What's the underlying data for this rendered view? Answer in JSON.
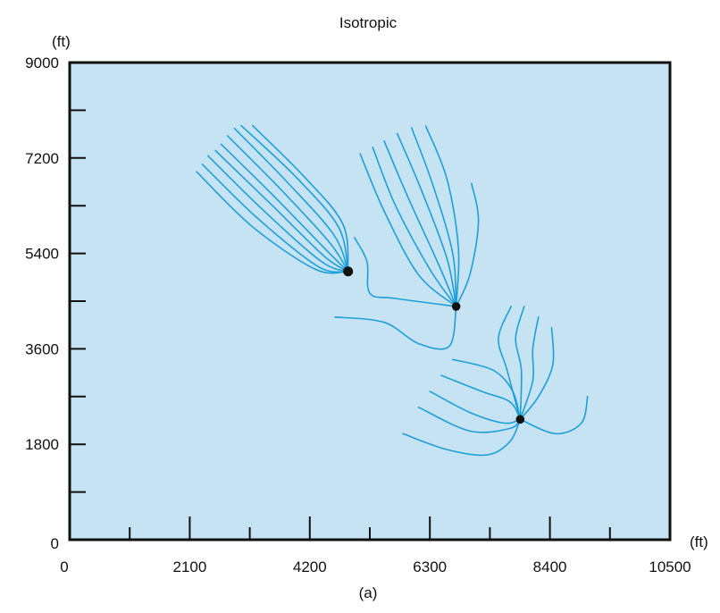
{
  "chart_data": {
    "type": "line",
    "title": "Isotropic",
    "caption": "(a)",
    "xlabel": "(ft)",
    "ylabel": "(ft)",
    "xlim": [
      0,
      10500
    ],
    "ylim": [
      0,
      9000
    ],
    "x_ticks": [
      0,
      2100,
      4200,
      6300,
      8400,
      10500
    ],
    "y_ticks": [
      0,
      1800,
      3600,
      5400,
      7200,
      9000
    ],
    "x_tick_labels": [
      "0",
      "2100",
      "4200",
      "6300",
      "8400",
      "10500"
    ],
    "y_tick_labels": [
      "0",
      "1800",
      "3600",
      "5400",
      "7200",
      "9000"
    ],
    "x_minor_ticks": [
      1050,
      3150,
      5250,
      7350,
      9450
    ],
    "y_minor_ticks": [
      900,
      2700,
      4500,
      6300,
      8100
    ],
    "grid": false,
    "colors": {
      "plot_background": "#c5e3f3",
      "streamline": "#1f9fd8",
      "well": "#111111",
      "axis": "#111111"
    },
    "wells": [
      {
        "x": 4870,
        "y": 5060
      },
      {
        "x": 6760,
        "y": 4400
      },
      {
        "x": 7880,
        "y": 2270
      }
    ],
    "streamlines": [
      {
        "points": [
          [
            2220,
            6940
          ],
          [
            3200,
            5900
          ],
          [
            4300,
            5100
          ],
          [
            4870,
            5060
          ]
        ]
      },
      {
        "points": [
          [
            2320,
            7080
          ],
          [
            3300,
            6050
          ],
          [
            4350,
            5150
          ],
          [
            4870,
            5060
          ]
        ]
      },
      {
        "points": [
          [
            2420,
            7240
          ],
          [
            3400,
            6200
          ],
          [
            4400,
            5250
          ],
          [
            4870,
            5060
          ]
        ]
      },
      {
        "points": [
          [
            2550,
            7340
          ],
          [
            3500,
            6350
          ],
          [
            4450,
            5350
          ],
          [
            4870,
            5060
          ]
        ]
      },
      {
        "points": [
          [
            2650,
            7460
          ],
          [
            3600,
            6450
          ],
          [
            4500,
            5450
          ],
          [
            4870,
            5060
          ]
        ]
      },
      {
        "points": [
          [
            2760,
            7620
          ],
          [
            3700,
            6600
          ],
          [
            4550,
            5600
          ],
          [
            4870,
            5060
          ]
        ]
      },
      {
        "points": [
          [
            2880,
            7760
          ],
          [
            3800,
            6750
          ],
          [
            4620,
            5750
          ],
          [
            4870,
            5060
          ]
        ]
      },
      {
        "points": [
          [
            3000,
            7810
          ],
          [
            3950,
            6850
          ],
          [
            4700,
            5900
          ],
          [
            4870,
            5060
          ]
        ]
      },
      {
        "points": [
          [
            3200,
            7810
          ],
          [
            4100,
            6850
          ],
          [
            4780,
            5950
          ],
          [
            4870,
            5060
          ]
        ]
      },
      {
        "points": [
          [
            4640,
            4200
          ],
          [
            5500,
            4100
          ],
          [
            6100,
            3700
          ],
          [
            6640,
            3650
          ],
          [
            6760,
            4400
          ]
        ]
      },
      {
        "points": [
          [
            4980,
            5700
          ],
          [
            5200,
            5250
          ],
          [
            5250,
            4650
          ],
          [
            5700,
            4550
          ],
          [
            6760,
            4400
          ]
        ]
      },
      {
        "points": [
          [
            5080,
            7280
          ],
          [
            5500,
            6200
          ],
          [
            6100,
            5000
          ],
          [
            6760,
            4400
          ]
        ]
      },
      {
        "points": [
          [
            5300,
            7400
          ],
          [
            5700,
            6300
          ],
          [
            6300,
            5100
          ],
          [
            6760,
            4400
          ]
        ]
      },
      {
        "points": [
          [
            5500,
            7520
          ],
          [
            5900,
            6500
          ],
          [
            6450,
            5200
          ],
          [
            6760,
            4400
          ]
        ]
      },
      {
        "points": [
          [
            5730,
            7660
          ],
          [
            6150,
            6600
          ],
          [
            6600,
            5300
          ],
          [
            6760,
            4400
          ]
        ]
      },
      {
        "points": [
          [
            5980,
            7770
          ],
          [
            6350,
            6700
          ],
          [
            6700,
            5400
          ],
          [
            6760,
            4400
          ]
        ]
      },
      {
        "points": [
          [
            6230,
            7800
          ],
          [
            6600,
            6800
          ],
          [
            6800,
            5500
          ],
          [
            6760,
            4400
          ]
        ]
      },
      {
        "points": [
          [
            7030,
            6720
          ],
          [
            7150,
            6000
          ],
          [
            7000,
            5000
          ],
          [
            6760,
            4400
          ]
        ]
      },
      {
        "points": [
          [
            5830,
            2000
          ],
          [
            6600,
            1700
          ],
          [
            7300,
            1600
          ],
          [
            7700,
            1850
          ],
          [
            7880,
            2270
          ]
        ]
      },
      {
        "points": [
          [
            6100,
            2500
          ],
          [
            7000,
            2050
          ],
          [
            7700,
            2100
          ],
          [
            7880,
            2270
          ]
        ]
      },
      {
        "points": [
          [
            6300,
            2800
          ],
          [
            7000,
            2400
          ],
          [
            7600,
            2200
          ],
          [
            7880,
            2270
          ]
        ]
      },
      {
        "points": [
          [
            6500,
            3100
          ],
          [
            7200,
            2800
          ],
          [
            7700,
            2600
          ],
          [
            7880,
            2270
          ]
        ]
      },
      {
        "points": [
          [
            6700,
            3400
          ],
          [
            7400,
            3200
          ],
          [
            7750,
            2800
          ],
          [
            7880,
            2270
          ]
        ]
      },
      {
        "points": [
          [
            7720,
            4400
          ],
          [
            7500,
            3800
          ],
          [
            7650,
            3200
          ],
          [
            7880,
            2270
          ]
        ]
      },
      {
        "points": [
          [
            7950,
            4400
          ],
          [
            7800,
            3800
          ],
          [
            7900,
            3200
          ],
          [
            7880,
            2270
          ]
        ]
      },
      {
        "points": [
          [
            8200,
            4200
          ],
          [
            8100,
            3600
          ],
          [
            8100,
            3000
          ],
          [
            7880,
            2270
          ]
        ]
      },
      {
        "points": [
          [
            8430,
            4000
          ],
          [
            8450,
            3300
          ],
          [
            8200,
            2700
          ],
          [
            7880,
            2270
          ]
        ]
      },
      {
        "points": [
          [
            9060,
            2700
          ],
          [
            8950,
            2200
          ],
          [
            8500,
            2000
          ],
          [
            7880,
            2270
          ]
        ]
      }
    ]
  }
}
